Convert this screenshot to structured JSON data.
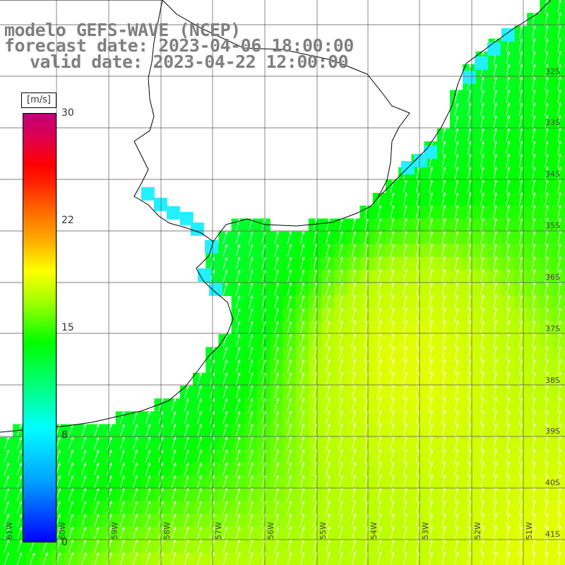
{
  "title": {
    "line1": "modelo GEFS-WAVE (NCEP)",
    "line2": "forecast date: 2023-04-06 18:00:00",
    "line3": "valid date: 2023-04-22 12:00:00"
  },
  "colorbar": {
    "unit": "[m/s]",
    "ticks": [
      "30",
      "22",
      "15",
      "8",
      "0"
    ],
    "min": 0,
    "max": 30
  },
  "latitude_labels": [
    "32S",
    "33S",
    "34S",
    "35S",
    "36S",
    "37S",
    "38S",
    "39S",
    "40S",
    "41S"
  ],
  "longitude_labels": [
    "61W",
    "60W",
    "59W",
    "58W",
    "57W",
    "56W",
    "55W",
    "54W",
    "53W",
    "52W",
    "51W"
  ],
  "colors": {
    "land": "#ffffff",
    "coast": "#000000",
    "grid": "#555555",
    "arrows": "#ffffff"
  }
}
